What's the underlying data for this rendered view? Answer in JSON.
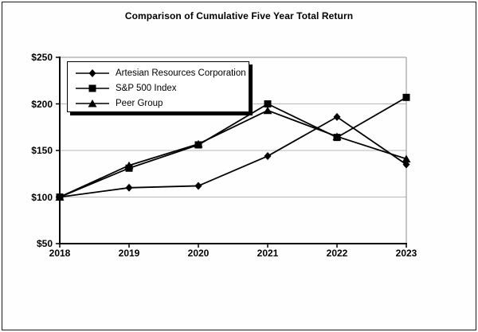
{
  "chart_data": {
    "type": "line",
    "title": "Comparison of Cumulative Five Year Total Return",
    "categories": [
      "2018",
      "2019",
      "2020",
      "2021",
      "2022",
      "2023"
    ],
    "series": [
      {
        "name": "Artesian Resources Corporation",
        "marker": "diamond",
        "values": [
          100,
          110,
          112,
          144,
          186,
          135
        ]
      },
      {
        "name": "S&P 500 Index",
        "marker": "square",
        "values": [
          100,
          131,
          156,
          200,
          164,
          207
        ]
      },
      {
        "name": "Peer Group",
        "marker": "triangle",
        "values": [
          100,
          134,
          157,
          193,
          165,
          141
        ]
      }
    ],
    "y_ticks": [
      "$250",
      "$200",
      "$150",
      "$100",
      "$50"
    ],
    "y_tick_values": [
      250,
      200,
      150,
      100,
      50
    ],
    "ylim": [
      50,
      250
    ],
    "grid": true,
    "legend_position": "top-left",
    "line_color": "#000000",
    "grid_color": "#b8b8b8",
    "frame_color": "#909090",
    "axis_color": "#000000"
  }
}
